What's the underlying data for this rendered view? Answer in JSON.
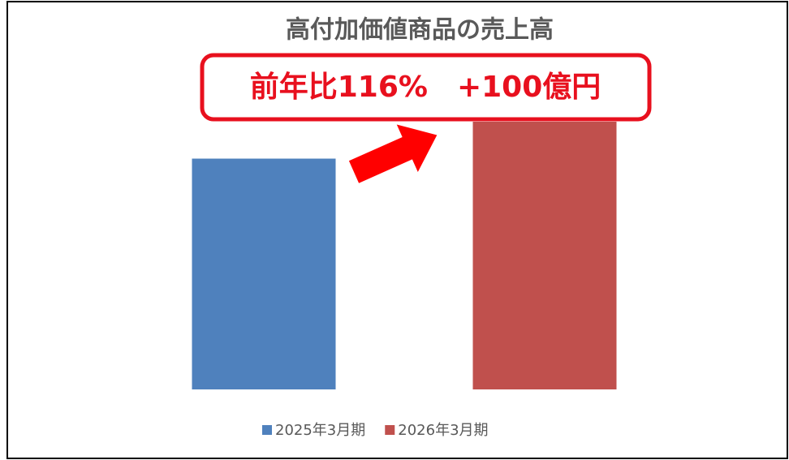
{
  "chart_data": {
    "type": "bar",
    "title": "高付加価値商品の売上高",
    "annotation": "前年比116%　+100億円",
    "categories": [
      null
    ],
    "series": [
      {
        "name": "2025年3月期",
        "color": "#4f81bd",
        "values": [
          625
        ]
      },
      {
        "name": "2026年3月期",
        "color": "#c0504d",
        "values": [
          725
        ]
      }
    ],
    "ylim": [
      0,
      725
    ],
    "legend": "bottom"
  }
}
